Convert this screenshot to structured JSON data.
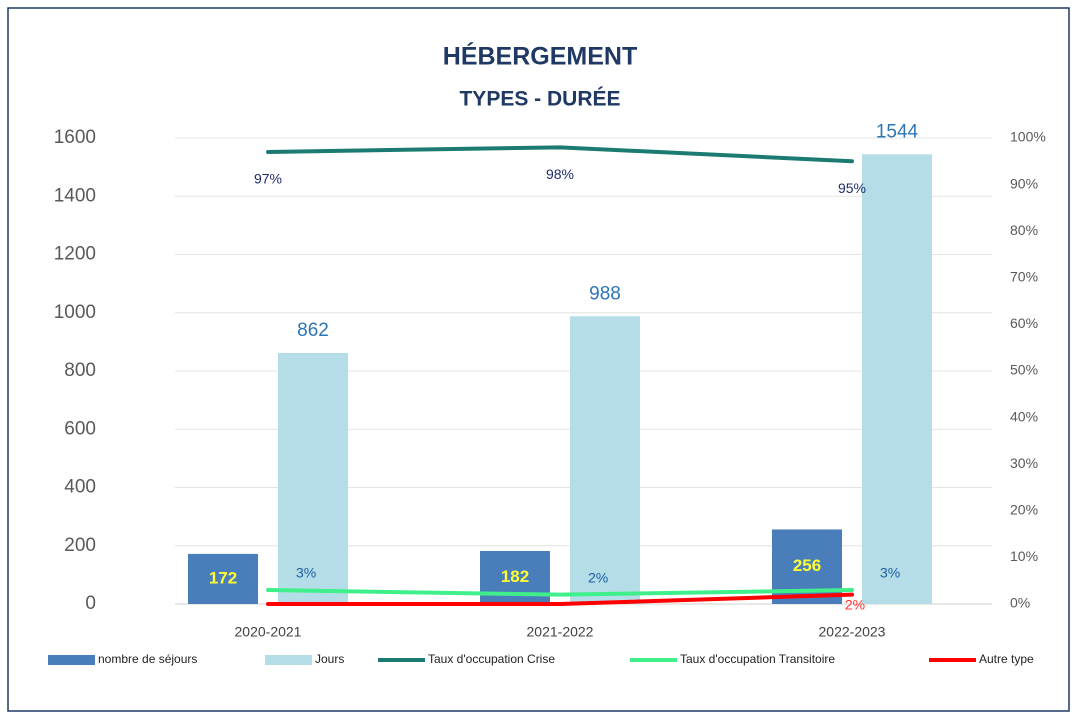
{
  "chart_data": {
    "type": "bar",
    "title": "HÉBERGEMENT",
    "subtitle": "TYPES - DURÉE",
    "categories": [
      "2020-2021",
      "2021-2022",
      "2022-2023"
    ],
    "series": [
      {
        "name": "nombre de séjours",
        "color": "#4a7ebb",
        "type": "bar",
        "values": [
          172,
          182,
          256
        ]
      },
      {
        "name": "Jours",
        "color": "#b4dde8",
        "type": "bar",
        "values": [
          862,
          988,
          1544
        ]
      },
      {
        "name": "Taux d'occupation Crise",
        "color": "#1b7b73",
        "type": "line",
        "axis": "y2",
        "values": [
          97,
          98,
          95
        ],
        "value_labels": [
          "97%",
          "98%",
          "95%"
        ]
      },
      {
        "name": "Taux d'occupation Transitoire",
        "color": "#3ff08a",
        "type": "line",
        "axis": "y2",
        "values": [
          3,
          2,
          3
        ],
        "value_labels": [
          "3%",
          "2%",
          "3%"
        ]
      },
      {
        "name": "Autre type",
        "color": "#ff0000",
        "type": "line",
        "axis": "y2",
        "values": [
          0,
          0,
          2
        ],
        "value_labels": [
          null,
          null,
          "2%"
        ]
      }
    ],
    "ylim": [
      0,
      1600
    ],
    "yticks": [
      0,
      200,
      400,
      600,
      800,
      1000,
      1200,
      1400,
      1600
    ],
    "y2lim": [
      0,
      100
    ],
    "y2ticks": [
      {
        "value": 0,
        "label": "0%"
      },
      {
        "value": 10,
        "label": "10%"
      },
      {
        "value": 20,
        "label": "20%"
      },
      {
        "value": 30,
        "label": "30%"
      },
      {
        "value": 40,
        "label": "40%"
      },
      {
        "value": 50,
        "label": "50%"
      },
      {
        "value": 60,
        "label": "60%"
      },
      {
        "value": 70,
        "label": "70%"
      },
      {
        "value": 80,
        "label": "80%"
      },
      {
        "value": 90,
        "label": "90%"
      },
      {
        "value": 100,
        "label": "100%"
      }
    ],
    "grid": true,
    "legend": "bottom"
  }
}
